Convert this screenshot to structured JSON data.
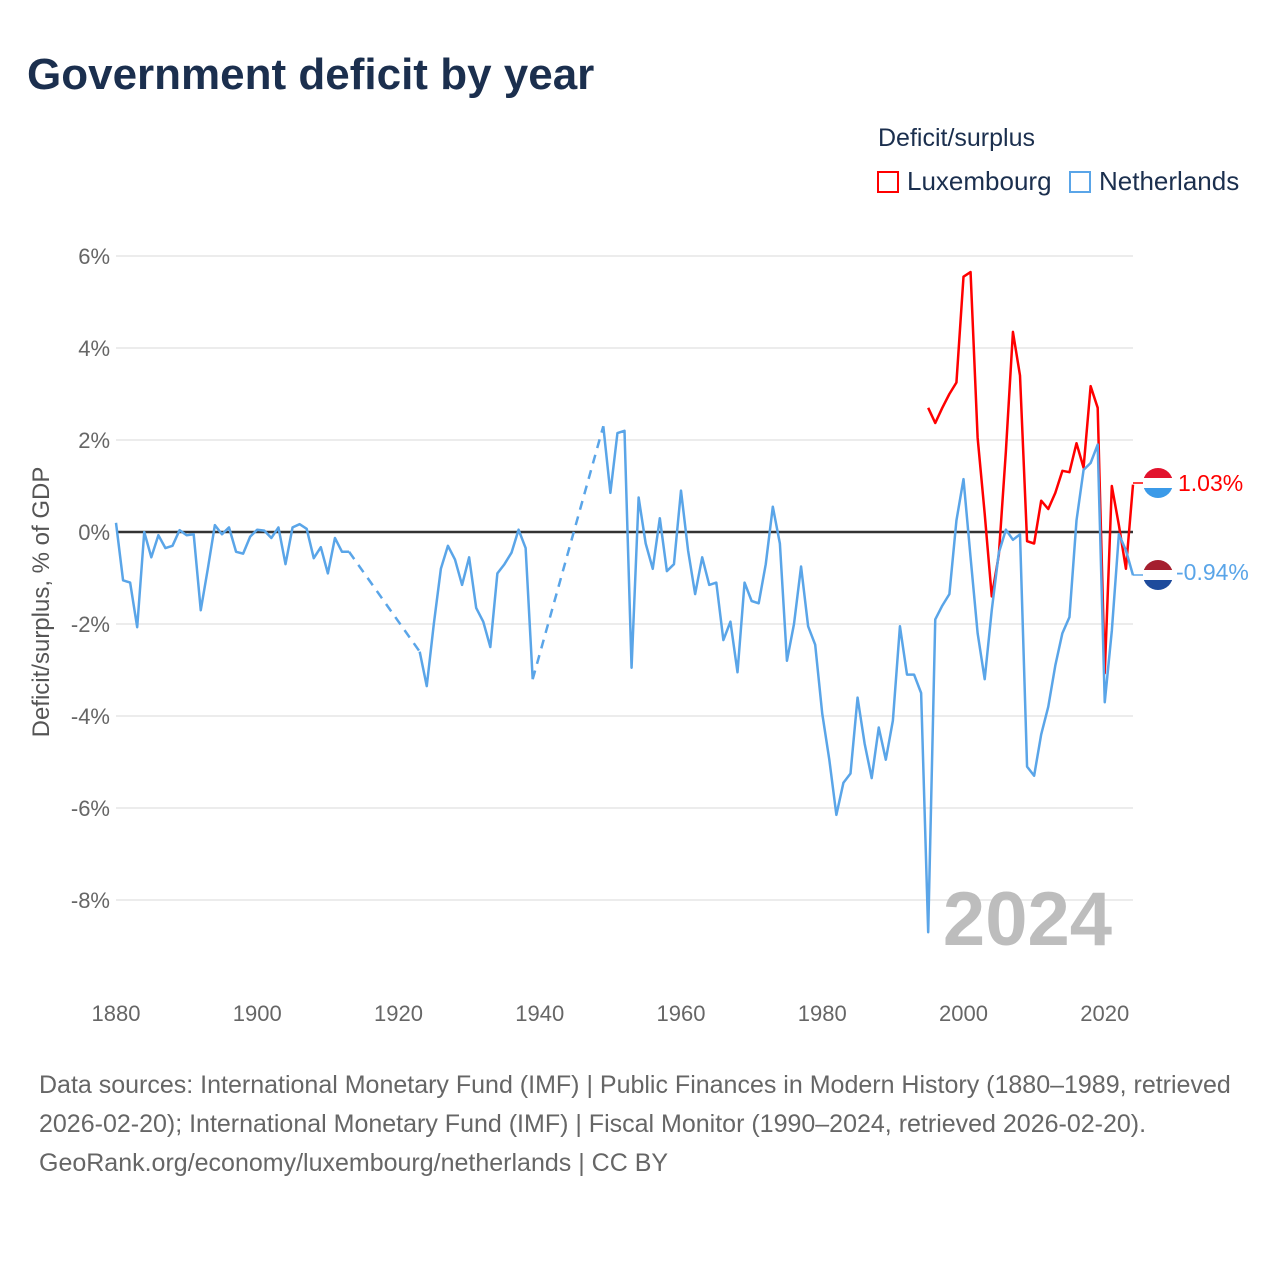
{
  "title": "Government deficit by year",
  "legend": {
    "title": "Deficit/surplus",
    "items": [
      {
        "name": "Luxembourg",
        "color": "#ff0000"
      },
      {
        "name": "Netherlands",
        "color": "#5aa5e8"
      }
    ]
  },
  "watermark_year": "2024",
  "end_labels": {
    "luxembourg": "1.03%",
    "netherlands": "-0.94%"
  },
  "footer": {
    "sources": "Data sources: International Monetary Fund (IMF) | Public Finances in Modern History (1880–1989, retrieved 2026-02-20); International Monetary Fund (IMF) | Fiscal Monitor (1990–2024, retrieved 2026-02-20).",
    "credit": "GeoRank.org/economy/luxembourg/netherlands | CC BY"
  },
  "chart_data": {
    "type": "line",
    "title": "Government deficit by year",
    "xlabel": "",
    "ylabel": "Deficit/surplus, % of GDP",
    "xlim": [
      1880,
      2024
    ],
    "ylim": [
      -9.5,
      6.5
    ],
    "x_ticks": [
      1880,
      1900,
      1920,
      1940,
      1960,
      1980,
      2000,
      2020
    ],
    "y_ticks": [
      6,
      4,
      2,
      0,
      -2,
      -4,
      -6,
      -8
    ],
    "y_tick_labels": [
      "6%",
      "4%",
      "2%",
      "0%",
      "-2%",
      "-4%",
      "-6%",
      "-8%"
    ],
    "grid": true,
    "legend_position": "top-right",
    "series": [
      {
        "name": "Luxembourg",
        "color": "#ff0000",
        "points": [
          [
            1995,
            2.7
          ],
          [
            1996,
            2.37
          ],
          [
            1997,
            2.7
          ],
          [
            1998,
            3.0
          ],
          [
            1999,
            3.25
          ],
          [
            2000,
            5.55
          ],
          [
            2001,
            5.65
          ],
          [
            2002,
            2.05
          ],
          [
            2003,
            0.4
          ],
          [
            2004,
            -1.4
          ],
          [
            2005,
            -0.5
          ],
          [
            2006,
            1.75
          ],
          [
            2007,
            4.35
          ],
          [
            2008,
            3.4
          ],
          [
            2009,
            -0.2
          ],
          [
            2010,
            -0.25
          ],
          [
            2011,
            0.68
          ],
          [
            2012,
            0.5
          ],
          [
            2013,
            0.85
          ],
          [
            2014,
            1.33
          ],
          [
            2015,
            1.3
          ],
          [
            2016,
            1.93
          ],
          [
            2017,
            1.4
          ],
          [
            2018,
            3.17
          ],
          [
            2019,
            2.7
          ],
          [
            2020,
            -3.07
          ],
          [
            2021,
            1.0
          ],
          [
            2022,
            0.15
          ],
          [
            2023,
            -0.8
          ],
          [
            2024,
            1.03
          ]
        ]
      },
      {
        "name": "Netherlands",
        "color": "#5aa5e8",
        "points": [
          [
            1880,
            0.2
          ],
          [
            1881,
            -1.05
          ],
          [
            1882,
            -1.1
          ],
          [
            1883,
            -2.07
          ],
          [
            1884,
            0
          ],
          [
            1885,
            -0.55
          ],
          [
            1886,
            -0.07
          ],
          [
            1887,
            -0.35
          ],
          [
            1888,
            -0.3
          ],
          [
            1889,
            0.04
          ],
          [
            1890,
            -0.07
          ],
          [
            1891,
            -0.05
          ],
          [
            1892,
            -1.7
          ],
          [
            1893,
            -0.8
          ],
          [
            1894,
            0.15
          ],
          [
            1895,
            -0.05
          ],
          [
            1896,
            0.1
          ],
          [
            1897,
            -0.43
          ],
          [
            1898,
            -0.47
          ],
          [
            1899,
            -0.1
          ],
          [
            1900,
            0.05
          ],
          [
            1901,
            0.03
          ],
          [
            1902,
            -0.13
          ],
          [
            1903,
            0.1
          ],
          [
            1904,
            -0.7
          ],
          [
            1905,
            0.1
          ],
          [
            1906,
            0.17
          ],
          [
            1907,
            0.07
          ],
          [
            1908,
            -0.57
          ],
          [
            1909,
            -0.33
          ],
          [
            1910,
            -0.9
          ],
          [
            1911,
            -0.13
          ],
          [
            1912,
            -0.43
          ],
          [
            1913,
            -0.43
          ],
          [
            1923,
            -2.6
          ],
          [
            1924,
            -3.35
          ],
          [
            1925,
            -2.0
          ],
          [
            1926,
            -0.8
          ],
          [
            1927,
            -0.3
          ],
          [
            1928,
            -0.6
          ],
          [
            1929,
            -1.15
          ],
          [
            1930,
            -0.55
          ],
          [
            1931,
            -1.65
          ],
          [
            1932,
            -1.95
          ],
          [
            1933,
            -2.5
          ],
          [
            1934,
            -0.9
          ],
          [
            1935,
            -0.7
          ],
          [
            1936,
            -0.45
          ],
          [
            1937,
            0.05
          ],
          [
            1938,
            -0.35
          ],
          [
            1939,
            -3.2
          ],
          [
            1949,
            2.3
          ],
          [
            1950,
            0.85
          ],
          [
            1951,
            2.15
          ],
          [
            1952,
            2.2
          ],
          [
            1953,
            -2.95
          ],
          [
            1954,
            0.75
          ],
          [
            1955,
            -0.25
          ],
          [
            1956,
            -0.8
          ],
          [
            1957,
            0.3
          ],
          [
            1958,
            -0.85
          ],
          [
            1959,
            -0.7
          ],
          [
            1960,
            0.9
          ],
          [
            1961,
            -0.4
          ],
          [
            1962,
            -1.35
          ],
          [
            1963,
            -0.55
          ],
          [
            1964,
            -1.15
          ],
          [
            1965,
            -1.1
          ],
          [
            1966,
            -2.35
          ],
          [
            1967,
            -1.95
          ],
          [
            1968,
            -3.05
          ],
          [
            1969,
            -1.1
          ],
          [
            1970,
            -1.5
          ],
          [
            1971,
            -1.55
          ],
          [
            1972,
            -0.7
          ],
          [
            1973,
            0.55
          ],
          [
            1974,
            -0.25
          ],
          [
            1975,
            -2.8
          ],
          [
            1976,
            -2.0
          ],
          [
            1977,
            -0.75
          ],
          [
            1978,
            -2.05
          ],
          [
            1979,
            -2.45
          ],
          [
            1980,
            -3.95
          ],
          [
            1981,
            -4.95
          ],
          [
            1982,
            -6.15
          ],
          [
            1983,
            -5.45
          ],
          [
            1984,
            -5.25
          ],
          [
            1985,
            -3.6
          ],
          [
            1986,
            -4.6
          ],
          [
            1987,
            -5.35
          ],
          [
            1988,
            -4.25
          ],
          [
            1989,
            -4.95
          ],
          [
            1990,
            -4.1
          ],
          [
            1991,
            -2.05
          ],
          [
            1992,
            -3.1
          ],
          [
            1993,
            -3.1
          ],
          [
            1994,
            -3.5
          ],
          [
            1995,
            -8.7
          ],
          [
            1996,
            -1.9
          ],
          [
            1997,
            -1.6
          ],
          [
            1998,
            -1.35
          ],
          [
            1999,
            0.25
          ],
          [
            2000,
            1.15
          ],
          [
            2001,
            -0.55
          ],
          [
            2002,
            -2.2
          ],
          [
            2003,
            -3.2
          ],
          [
            2004,
            -1.7
          ],
          [
            2005,
            -0.45
          ],
          [
            2006,
            0.05
          ],
          [
            2007,
            -0.17
          ],
          [
            2008,
            -0.05
          ],
          [
            2009,
            -5.1
          ],
          [
            2010,
            -5.3
          ],
          [
            2011,
            -4.4
          ],
          [
            2012,
            -3.8
          ],
          [
            2013,
            -2.9
          ],
          [
            2014,
            -2.2
          ],
          [
            2015,
            -1.85
          ],
          [
            2016,
            0.25
          ],
          [
            2017,
            1.35
          ],
          [
            2018,
            1.5
          ],
          [
            2019,
            1.9
          ],
          [
            2020,
            -3.7
          ],
          [
            2021,
            -2.15
          ],
          [
            2022,
            -0.05
          ],
          [
            2023,
            -0.4
          ],
          [
            2024,
            -0.94
          ]
        ]
      }
    ]
  }
}
